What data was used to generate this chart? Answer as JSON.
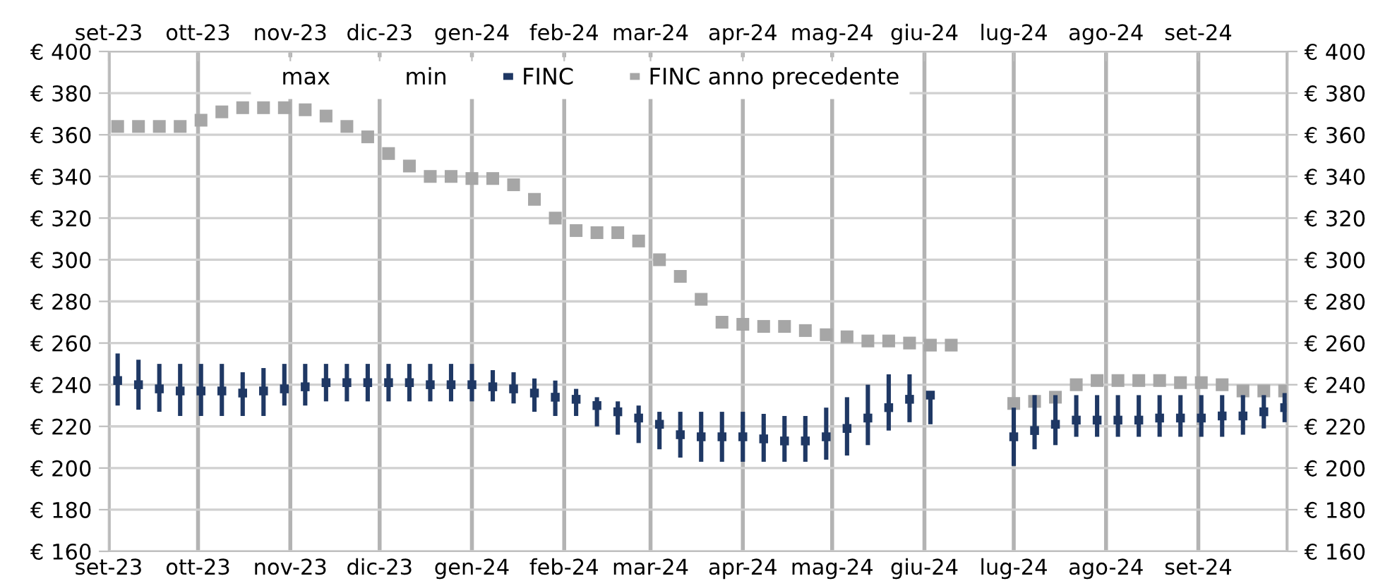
{
  "chart_data": {
    "type": "scatter",
    "x": [
      "2023-09-04",
      "2023-09-11",
      "2023-09-18",
      "2023-09-25",
      "2023-10-02",
      "2023-10-09",
      "2023-10-16",
      "2023-10-23",
      "2023-10-30",
      "2023-11-06",
      "2023-11-13",
      "2023-11-20",
      "2023-11-27",
      "2023-12-04",
      "2023-12-11",
      "2023-12-18",
      "2023-12-25",
      "2024-01-01",
      "2024-01-08",
      "2024-01-15",
      "2024-01-22",
      "2024-01-29",
      "2024-02-05",
      "2024-02-12",
      "2024-02-19",
      "2024-02-26",
      "2024-03-04",
      "2024-03-11",
      "2024-03-18",
      "2024-03-25",
      "2024-04-01",
      "2024-04-08",
      "2024-04-15",
      "2024-04-22",
      "2024-04-29",
      "2024-05-06",
      "2024-05-13",
      "2024-05-20",
      "2024-05-27",
      "2024-06-03",
      "2024-06-10",
      "2024-06-17",
      "2024-06-24",
      "2024-07-01",
      "2024-07-08",
      "2024-07-15",
      "2024-07-22",
      "2024-07-29",
      "2024-08-05",
      "2024-08-12",
      "2024-08-19",
      "2024-08-26",
      "2024-09-02",
      "2024-09-09",
      "2024-09-16",
      "2024-09-23",
      "2024-09-30"
    ],
    "series": [
      {
        "name": "FINC",
        "color": "#1f3864",
        "marker": "square",
        "values": [
          242,
          240,
          238,
          237,
          237,
          237,
          236,
          237,
          238,
          239,
          241,
          241,
          241,
          241,
          241,
          240,
          240,
          240,
          239,
          238,
          236,
          234,
          233,
          230,
          227,
          224,
          221,
          216,
          215,
          215,
          215,
          214,
          213,
          213,
          215,
          219,
          224,
          229,
          233,
          235,
          null,
          null,
          null,
          215,
          218,
          221,
          223,
          223,
          223,
          223,
          224,
          224,
          224,
          225,
          225,
          227,
          229
        ],
        "errors": [
          [
            230,
            255
          ],
          [
            228,
            252
          ],
          [
            227,
            250
          ],
          [
            225,
            250
          ],
          [
            225,
            250
          ],
          [
            225,
            250
          ],
          [
            225,
            246
          ],
          [
            225,
            248
          ],
          [
            230,
            250
          ],
          [
            230,
            250
          ],
          [
            232,
            250
          ],
          [
            232,
            250
          ],
          [
            232,
            250
          ],
          [
            232,
            250
          ],
          [
            232,
            250
          ],
          [
            232,
            250
          ],
          [
            232,
            250
          ],
          [
            232,
            250
          ],
          [
            232,
            247
          ],
          [
            231,
            246
          ],
          [
            227,
            243
          ],
          [
            225,
            242
          ],
          [
            225,
            238
          ],
          [
            220,
            234
          ],
          [
            216,
            232
          ],
          [
            212,
            230
          ],
          [
            209,
            227
          ],
          [
            205,
            227
          ],
          [
            203,
            227
          ],
          [
            203,
            227
          ],
          [
            203,
            227
          ],
          [
            203,
            226
          ],
          [
            203,
            225
          ],
          [
            203,
            225
          ],
          [
            204,
            229
          ],
          [
            206,
            234
          ],
          [
            211,
            240
          ],
          [
            218,
            245
          ],
          [
            222,
            245
          ],
          [
            221,
            236
          ],
          null,
          null,
          null,
          [
            201,
            229
          ],
          [
            209,
            235
          ],
          [
            211,
            235
          ],
          [
            215,
            235
          ],
          [
            215,
            235
          ],
          [
            215,
            235
          ],
          [
            215,
            235
          ],
          [
            215,
            235
          ],
          [
            215,
            235
          ],
          [
            215,
            235
          ],
          [
            215,
            235
          ],
          [
            216,
            235
          ],
          [
            219,
            235
          ],
          [
            222,
            236
          ]
        ]
      },
      {
        "name": "FINC anno precedente",
        "color": "#a6a6a6",
        "marker": "square",
        "values": [
          364,
          364,
          364,
          364,
          367,
          371,
          373,
          373,
          373,
          372,
          369,
          364,
          359,
          351,
          345,
          340,
          340,
          339,
          339,
          336,
          329,
          320,
          314,
          313,
          313,
          309,
          300,
          292,
          281,
          270,
          269,
          268,
          268,
          266,
          264,
          263,
          261,
          261,
          260,
          259,
          259,
          null,
          null,
          231,
          232,
          234,
          240,
          242,
          242,
          242,
          242,
          241,
          241,
          240,
          237,
          237,
          237
        ]
      }
    ],
    "annotations": [
      "max",
      "min"
    ],
    "xlim": [
      "2023-09-01",
      "2024-10-01"
    ],
    "xticks": [
      {
        "value": "2023-09-01",
        "label": "set-23"
      },
      {
        "value": "2023-10-01",
        "label": "ott-23"
      },
      {
        "value": "2023-11-01",
        "label": "nov-23"
      },
      {
        "value": "2023-12-01",
        "label": "dic-23"
      },
      {
        "value": "2024-01-01",
        "label": "gen-24"
      },
      {
        "value": "2024-02-01",
        "label": "feb-24"
      },
      {
        "value": "2024-03-01",
        "label": "mar-24"
      },
      {
        "value": "2024-04-01",
        "label": "apr-24"
      },
      {
        "value": "2024-05-01",
        "label": "mag-24"
      },
      {
        "value": "2024-06-01",
        "label": "giu-24"
      },
      {
        "value": "2024-07-01",
        "label": "lug-24"
      },
      {
        "value": "2024-08-01",
        "label": "ago-24"
      },
      {
        "value": "2024-09-01",
        "label": "set-24"
      },
      {
        "value": "2024-10-01",
        "label": null
      }
    ],
    "x2lim": [
      "2023-09-01",
      "2024-10-01"
    ],
    "x2ticks": [
      {
        "value": "2023-09-01",
        "label": "set-23"
      },
      {
        "value": "2023-10-01",
        "label": "ott-23"
      },
      {
        "value": "2023-11-01",
        "label": "nov-23"
      },
      {
        "value": "2023-12-01",
        "label": "dic-23"
      },
      {
        "value": "2024-01-01",
        "label": "gen-24"
      },
      {
        "value": "2024-02-01",
        "label": "feb-24"
      },
      {
        "value": "2024-03-01",
        "label": "mar-24"
      },
      {
        "value": "2024-04-01",
        "label": "apr-24"
      },
      {
        "value": "2024-05-01",
        "label": "mag-24"
      },
      {
        "value": "2024-06-01",
        "label": "giu-24"
      },
      {
        "value": "2024-07-01",
        "label": "lug-24"
      },
      {
        "value": "2024-08-01",
        "label": "ago-24"
      },
      {
        "value": "2024-09-01",
        "label": "set-24"
      },
      {
        "value": "2024-10-01",
        "label": null
      }
    ],
    "ylim": [
      160,
      400
    ],
    "yticks": [
      {
        "value": 160,
        "label": "€ 160"
      },
      {
        "value": 180,
        "label": "€ 180"
      },
      {
        "value": 200,
        "label": "€ 200"
      },
      {
        "value": 220,
        "label": "€ 220"
      },
      {
        "value": 240,
        "label": "€ 240"
      },
      {
        "value": 260,
        "label": "€ 260"
      },
      {
        "value": 280,
        "label": "€ 280"
      },
      {
        "value": 300,
        "label": "€ 300"
      },
      {
        "value": 320,
        "label": "€ 320"
      },
      {
        "value": 340,
        "label": "€ 340"
      },
      {
        "value": 360,
        "label": "€ 360"
      },
      {
        "value": 380,
        "label": "€ 380"
      },
      {
        "value": 400,
        "label": "€ 400"
      }
    ],
    "y2lim": [
      160,
      400
    ],
    "y2ticks": [
      {
        "value": 160,
        "label": "€ 160"
      },
      {
        "value": 180,
        "label": "€ 180"
      },
      {
        "value": 200,
        "label": "€ 200"
      },
      {
        "value": 220,
        "label": "€ 220"
      },
      {
        "value": 240,
        "label": "€ 240"
      },
      {
        "value": 260,
        "label": "€ 260"
      },
      {
        "value": 280,
        "label": "€ 280"
      },
      {
        "value": 300,
        "label": "€ 300"
      },
      {
        "value": 320,
        "label": "€ 320"
      },
      {
        "value": 340,
        "label": "€ 340"
      },
      {
        "value": 360,
        "label": "€ 360"
      },
      {
        "value": 380,
        "label": "€ 380"
      },
      {
        "value": 400,
        "label": "€ 400"
      }
    ],
    "grid": true,
    "legend": "top"
  }
}
